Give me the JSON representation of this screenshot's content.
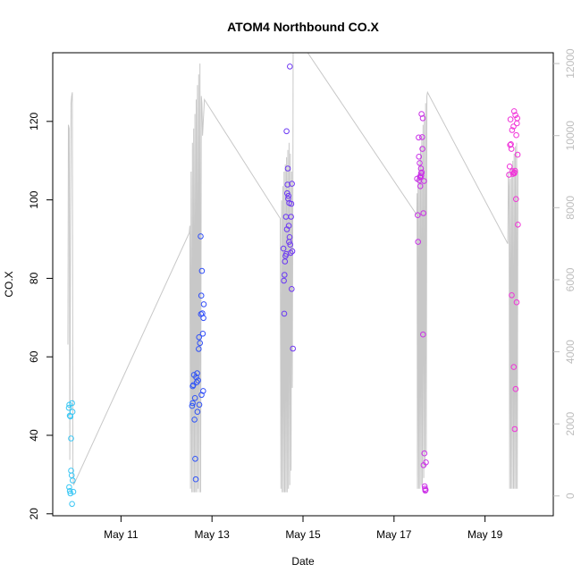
{
  "chart_data": {
    "type": "scatter",
    "title": "ATOM4 Northbound CO.X",
    "xlabel": "Date",
    "ylabel": "CO.X",
    "x_range": [
      "2016-05-09T12:00",
      "2016-05-20T12:00"
    ],
    "x_ticks": [
      {
        "date": "2016-05-11",
        "label": "May 11"
      },
      {
        "date": "2016-05-13",
        "label": "May 13"
      },
      {
        "date": "2016-05-15",
        "label": "May 15"
      },
      {
        "date": "2016-05-17",
        "label": "May 17"
      },
      {
        "date": "2016-05-19",
        "label": "May 19"
      }
    ],
    "ylim": [
      19.5,
      137.5
    ],
    "y_ticks": [
      20,
      40,
      60,
      80,
      100,
      120
    ],
    "y2lim": [
      -550,
      12300
    ],
    "y2_ticks": [
      0,
      2000,
      4000,
      6000,
      8000,
      10000,
      12000
    ],
    "grid": false,
    "point_color_range": [
      "#38c8f4",
      "#2f3ff8",
      "#b42ff0",
      "#f233d8"
    ],
    "secondary_line_color": "#c8c8c8",
    "series": [
      {
        "points": [
          {
            "x": "2016-05-09T20:30",
            "y": 47.0
          },
          {
            "x": "2016-05-09T20:45",
            "y": 47.8
          },
          {
            "x": "2016-05-09T21:00",
            "y": 45.0
          },
          {
            "x": "2016-05-09T21:20",
            "y": 44.8
          },
          {
            "x": "2016-05-09T21:40",
            "y": 39.2
          },
          {
            "x": "2016-05-09T22:10",
            "y": 48.2
          },
          {
            "x": "2016-05-09T22:25",
            "y": 46.0
          },
          {
            "x": "2016-05-09T20:40",
            "y": 26.8
          },
          {
            "x": "2016-05-09T21:00",
            "y": 25.8
          },
          {
            "x": "2016-05-09T21:20",
            "y": 25.2
          },
          {
            "x": "2016-05-09T21:40",
            "y": 31.0
          },
          {
            "x": "2016-05-09T22:00",
            "y": 29.8
          },
          {
            "x": "2016-05-09T22:10",
            "y": 22.5
          },
          {
            "x": "2016-05-09T22:30",
            "y": 28.5
          },
          {
            "x": "2016-05-09T22:50",
            "y": 25.6
          },
          {
            "x": "2016-05-12T13:30",
            "y": 47.5
          },
          {
            "x": "2016-05-12T13:50",
            "y": 48.2
          },
          {
            "x": "2016-05-12T14:10",
            "y": 52.8
          },
          {
            "x": "2016-05-12T14:30",
            "y": 55.4
          },
          {
            "x": "2016-05-12T14:45",
            "y": 44.0
          },
          {
            "x": "2016-05-12T15:00",
            "y": 49.5
          },
          {
            "x": "2016-05-12T15:10",
            "y": 34.0
          },
          {
            "x": "2016-05-12T15:25",
            "y": 28.8
          },
          {
            "x": "2016-05-12T15:40",
            "y": 54.8
          },
          {
            "x": "2016-05-12T16:00",
            "y": 53.5
          },
          {
            "x": "2016-05-12T16:10",
            "y": 55.8
          },
          {
            "x": "2016-05-12T16:20",
            "y": 46.0
          },
          {
            "x": "2016-05-12T16:40",
            "y": 54.0
          },
          {
            "x": "2016-05-12T17:00",
            "y": 62.0
          },
          {
            "x": "2016-05-12T17:10",
            "y": 65.0
          },
          {
            "x": "2016-05-12T17:20",
            "y": 47.8
          },
          {
            "x": "2016-05-12T17:40",
            "y": 63.5
          },
          {
            "x": "2016-05-12T18:00",
            "y": 90.7
          },
          {
            "x": "2016-05-12T18:10",
            "y": 70.9
          },
          {
            "x": "2016-05-12T18:20",
            "y": 75.6
          },
          {
            "x": "2016-05-12T18:30",
            "y": 50.3
          },
          {
            "x": "2016-05-12T18:40",
            "y": 81.9
          },
          {
            "x": "2016-05-12T18:55",
            "y": 71.1
          },
          {
            "x": "2016-05-12T19:10",
            "y": 65.9
          },
          {
            "x": "2016-05-12T19:20",
            "y": 51.3
          },
          {
            "x": "2016-05-12T19:30",
            "y": 69.9
          },
          {
            "x": "2016-05-12T19:40",
            "y": 73.4
          },
          {
            "x": "2016-05-12T13:50",
            "y": 52.5
          },
          {
            "x": "2016-05-14T13:40",
            "y": 87.6
          },
          {
            "x": "2016-05-14T13:55",
            "y": 79.4
          },
          {
            "x": "2016-05-14T14:05",
            "y": 71.0
          },
          {
            "x": "2016-05-14T14:15",
            "y": 80.9
          },
          {
            "x": "2016-05-14T14:30",
            "y": 84.3
          },
          {
            "x": "2016-05-14T14:45",
            "y": 85.7
          },
          {
            "x": "2016-05-14T15:00",
            "y": 95.7
          },
          {
            "x": "2016-05-14T15:10",
            "y": 86.2
          },
          {
            "x": "2016-05-14T15:20",
            "y": 117.5
          },
          {
            "x": "2016-05-14T15:30",
            "y": 92.5
          },
          {
            "x": "2016-05-14T15:40",
            "y": 101.7
          },
          {
            "x": "2016-05-14T15:50",
            "y": 103.9
          },
          {
            "x": "2016-05-14T16:00",
            "y": 108.0
          },
          {
            "x": "2016-05-14T16:10",
            "y": 100.3
          },
          {
            "x": "2016-05-14T16:20",
            "y": 101.0
          },
          {
            "x": "2016-05-14T16:30",
            "y": 93.4
          },
          {
            "x": "2016-05-14T16:40",
            "y": 89.3
          },
          {
            "x": "2016-05-14T16:45",
            "y": 99.2
          },
          {
            "x": "2016-05-14T16:55",
            "y": 90.5
          },
          {
            "x": "2016-05-14T17:05",
            "y": 134.0
          },
          {
            "x": "2016-05-14T17:15",
            "y": 88.6
          },
          {
            "x": "2016-05-14T17:30",
            "y": 86.5
          },
          {
            "x": "2016-05-14T17:40",
            "y": 95.7
          },
          {
            "x": "2016-05-14T17:50",
            "y": 99.0
          },
          {
            "x": "2016-05-14T18:00",
            "y": 77.3
          },
          {
            "x": "2016-05-14T18:10",
            "y": 104.1
          },
          {
            "x": "2016-05-14T18:20",
            "y": 86.9
          },
          {
            "x": "2016-05-14T18:40",
            "y": 62.1
          },
          {
            "x": "2016-05-17T12:10",
            "y": 105.4
          },
          {
            "x": "2016-05-17T12:30",
            "y": 96.1
          },
          {
            "x": "2016-05-17T12:40",
            "y": 89.3
          },
          {
            "x": "2016-05-17T13:00",
            "y": 115.9
          },
          {
            "x": "2016-05-17T13:10",
            "y": 111.0
          },
          {
            "x": "2016-05-17T13:20",
            "y": 105.0
          },
          {
            "x": "2016-05-17T13:30",
            "y": 109.4
          },
          {
            "x": "2016-05-17T13:40",
            "y": 105.9
          },
          {
            "x": "2016-05-17T13:50",
            "y": 103.5
          },
          {
            "x": "2016-05-17T14:00",
            "y": 105.7
          },
          {
            "x": "2016-05-17T14:10",
            "y": 108.0
          },
          {
            "x": "2016-05-17T14:15",
            "y": 106.8
          },
          {
            "x": "2016-05-17T14:20",
            "y": 106.2
          },
          {
            "x": "2016-05-17T14:30",
            "y": 121.9
          },
          {
            "x": "2016-05-17T14:40",
            "y": 107.0
          },
          {
            "x": "2016-05-17T14:50",
            "y": 116.0
          },
          {
            "x": "2016-05-17T15:00",
            "y": 113.0
          },
          {
            "x": "2016-05-17T15:10",
            "y": 120.8
          },
          {
            "x": "2016-05-17T15:20",
            "y": 65.7
          },
          {
            "x": "2016-05-17T15:30",
            "y": 96.6
          },
          {
            "x": "2016-05-17T15:35",
            "y": 32.4
          },
          {
            "x": "2016-05-17T15:50",
            "y": 104.8
          },
          {
            "x": "2016-05-17T16:00",
            "y": 35.4
          },
          {
            "x": "2016-05-17T16:10",
            "y": 27.0
          },
          {
            "x": "2016-05-17T16:20",
            "y": 26.4
          },
          {
            "x": "2016-05-17T16:30",
            "y": 25.9
          },
          {
            "x": "2016-05-17T16:40",
            "y": 26.1
          },
          {
            "x": "2016-05-17T16:50",
            "y": 33.1
          },
          {
            "x": "2016-05-19T12:40",
            "y": 106.4
          },
          {
            "x": "2016-05-19T13:00",
            "y": 108.5
          },
          {
            "x": "2016-05-19T13:15",
            "y": 114.0
          },
          {
            "x": "2016-05-19T13:25",
            "y": 120.5
          },
          {
            "x": "2016-05-19T13:40",
            "y": 114.2
          },
          {
            "x": "2016-05-19T13:55",
            "y": 113.0
          },
          {
            "x": "2016-05-19T14:05",
            "y": 75.7
          },
          {
            "x": "2016-05-19T14:15",
            "y": 117.8
          },
          {
            "x": "2016-05-19T14:30",
            "y": 107.3
          },
          {
            "x": "2016-05-19T14:45",
            "y": 106.6
          },
          {
            "x": "2016-05-19T15:00",
            "y": 118.7
          },
          {
            "x": "2016-05-19T15:10",
            "y": 57.4
          },
          {
            "x": "2016-05-19T15:20",
            "y": 122.6
          },
          {
            "x": "2016-05-19T15:25",
            "y": 107.0
          },
          {
            "x": "2016-05-19T15:30",
            "y": 106.8
          },
          {
            "x": "2016-05-19T15:40",
            "y": 41.6
          },
          {
            "x": "2016-05-19T15:50",
            "y": 107.4
          },
          {
            "x": "2016-05-19T16:00",
            "y": 121.6
          },
          {
            "x": "2016-05-19T16:10",
            "y": 51.8
          },
          {
            "x": "2016-05-19T16:20",
            "y": 100.2
          },
          {
            "x": "2016-05-19T16:30",
            "y": 116.5
          },
          {
            "x": "2016-05-19T16:40",
            "y": 73.9
          },
          {
            "x": "2016-05-19T16:50",
            "y": 119.5
          },
          {
            "x": "2016-05-19T17:00",
            "y": 120.8
          },
          {
            "x": "2016-05-19T17:10",
            "y": 111.5
          },
          {
            "x": "2016-05-19T17:20",
            "y": 93.7
          }
        ]
      },
      {
        "axis": "right",
        "line": [
          {
            "x": "2016-05-09T20:00",
            "y": 4200
          },
          {
            "x": "2016-05-09T20:15",
            "y": 10300
          },
          {
            "x": "2016-05-09T20:40",
            "y": 10200
          },
          {
            "x": "2016-05-09T21:00",
            "y": 1000
          },
          {
            "x": "2016-05-09T21:20",
            "y": 7500
          },
          {
            "x": "2016-05-09T21:40",
            "y": 10900
          },
          {
            "x": "2016-05-09T22:00",
            "y": 11100
          },
          {
            "x": "2016-05-09T22:20",
            "y": 11200
          },
          {
            "x": "2016-05-09T22:40",
            "y": 600
          },
          {
            "x": "2016-05-09T23:00",
            "y": 300
          },
          {
            "x": "2016-05-12T12:00",
            "y": 7300
          },
          {
            "x": "2016-05-12T12:20",
            "y": 7500
          },
          {
            "x": "2016-05-12T12:40",
            "y": 200
          },
          {
            "x": "2016-05-12T13:00",
            "y": 9000
          },
          {
            "x": "2016-05-12T13:20",
            "y": 100
          },
          {
            "x": "2016-05-12T13:40",
            "y": 9800
          },
          {
            "x": "2016-05-12T14:00",
            "y": 100
          },
          {
            "x": "2016-05-12T14:20",
            "y": 10200
          },
          {
            "x": "2016-05-12T14:40",
            "y": 100
          },
          {
            "x": "2016-05-12T15:00",
            "y": 10600
          },
          {
            "x": "2016-05-12T15:20",
            "y": 100
          },
          {
            "x": "2016-05-12T15:40",
            "y": 11000
          },
          {
            "x": "2016-05-12T16:00",
            "y": 100
          },
          {
            "x": "2016-05-12T16:20",
            "y": 11400
          },
          {
            "x": "2016-05-12T16:40",
            "y": 200
          },
          {
            "x": "2016-05-12T17:00",
            "y": 11700
          },
          {
            "x": "2016-05-12T17:20",
            "y": 100
          },
          {
            "x": "2016-05-12T17:40",
            "y": 12000
          },
          {
            "x": "2016-05-12T18:00",
            "y": 100
          },
          {
            "x": "2016-05-12T18:20",
            "y": 11100
          },
          {
            "x": "2016-05-12T18:40",
            "y": 10900
          },
          {
            "x": "2016-05-12T19:00",
            "y": 10000
          },
          {
            "x": "2016-05-12T20:00",
            "y": 11000
          },
          {
            "x": "2016-05-14T12:00",
            "y": 7700
          },
          {
            "x": "2016-05-14T12:20",
            "y": 200
          },
          {
            "x": "2016-05-14T12:40",
            "y": 8200
          },
          {
            "x": "2016-05-14T13:00",
            "y": 100
          },
          {
            "x": "2016-05-14T13:20",
            "y": 8600
          },
          {
            "x": "2016-05-14T13:40",
            "y": 100
          },
          {
            "x": "2016-05-14T14:00",
            "y": 9000
          },
          {
            "x": "2016-05-14T14:20",
            "y": 100
          },
          {
            "x": "2016-05-14T14:40",
            "y": 9200
          },
          {
            "x": "2016-05-14T15:00",
            "y": 100
          },
          {
            "x": "2016-05-14T15:20",
            "y": 9400
          },
          {
            "x": "2016-05-14T15:40",
            "y": 100
          },
          {
            "x": "2016-05-14T16:00",
            "y": 9600
          },
          {
            "x": "2016-05-14T16:20",
            "y": 200
          },
          {
            "x": "2016-05-14T16:40",
            "y": 9800
          },
          {
            "x": "2016-05-14T17:00",
            "y": 300
          },
          {
            "x": "2016-05-14T17:20",
            "y": 9500
          },
          {
            "x": "2016-05-14T17:40",
            "y": 700
          },
          {
            "x": "2016-05-14T18:00",
            "y": 9000
          },
          {
            "x": "2016-05-14T18:20",
            "y": 3000
          },
          {
            "x": "2016-05-14T18:40",
            "y": 8800
          },
          {
            "x": "2016-05-14T18:50",
            "y": 12900
          },
          {
            "x": "2016-05-17T12:00",
            "y": 7800
          },
          {
            "x": "2016-05-17T12:10",
            "y": 8400
          },
          {
            "x": "2016-05-17T12:20",
            "y": 200
          },
          {
            "x": "2016-05-17T12:40",
            "y": 8900
          },
          {
            "x": "2016-05-17T13:00",
            "y": 200
          },
          {
            "x": "2016-05-17T13:20",
            "y": 9300
          },
          {
            "x": "2016-05-17T13:40",
            "y": 200
          },
          {
            "x": "2016-05-17T14:00",
            "y": 9700
          },
          {
            "x": "2016-05-17T14:20",
            "y": 300
          },
          {
            "x": "2016-05-17T14:40",
            "y": 10000
          },
          {
            "x": "2016-05-17T15:00",
            "y": 300
          },
          {
            "x": "2016-05-17T15:20",
            "y": 10300
          },
          {
            "x": "2016-05-17T15:40",
            "y": 500
          },
          {
            "x": "2016-05-17T16:00",
            "y": 10600
          },
          {
            "x": "2016-05-17T16:20",
            "y": 800
          },
          {
            "x": "2016-05-17T16:40",
            "y": 10900
          },
          {
            "x": "2016-05-17T17:00",
            "y": 1200
          },
          {
            "x": "2016-05-17T17:20",
            "y": 11100
          },
          {
            "x": "2016-05-17T17:40",
            "y": 11200
          },
          {
            "x": "2016-05-19T12:00",
            "y": 7000
          },
          {
            "x": "2016-05-19T12:20",
            "y": 9000
          },
          {
            "x": "2016-05-19T12:40",
            "y": 8600
          },
          {
            "x": "2016-05-19T13:00",
            "y": 200
          },
          {
            "x": "2016-05-19T13:20",
            "y": 8800
          },
          {
            "x": "2016-05-19T13:40",
            "y": 200
          },
          {
            "x": "2016-05-19T14:00",
            "y": 9100
          },
          {
            "x": "2016-05-19T14:20",
            "y": 200
          },
          {
            "x": "2016-05-19T14:40",
            "y": 9300
          },
          {
            "x": "2016-05-19T15:00",
            "y": 200
          },
          {
            "x": "2016-05-19T15:20",
            "y": 9500
          },
          {
            "x": "2016-05-19T15:40",
            "y": 200
          },
          {
            "x": "2016-05-19T16:00",
            "y": 9700
          },
          {
            "x": "2016-05-19T16:20",
            "y": 200
          },
          {
            "x": "2016-05-19T16:40",
            "y": 9800
          },
          {
            "x": "2016-05-19T17:00",
            "y": 200
          },
          {
            "x": "2016-05-19T17:20",
            "y": 9000
          }
        ]
      }
    ]
  }
}
